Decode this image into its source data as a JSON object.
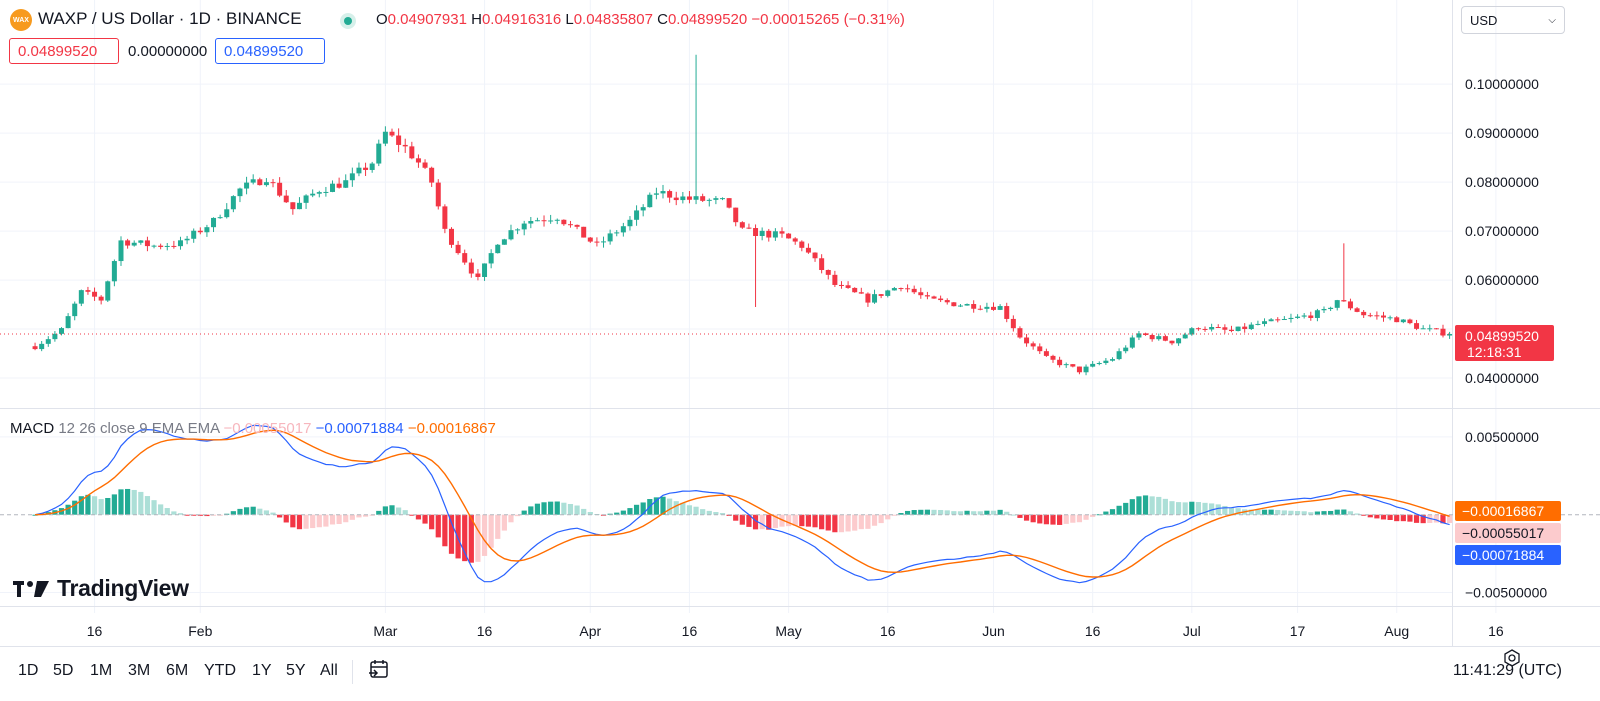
{
  "header": {
    "logo_text": "WAX",
    "symbol": "WAXP / US Dollar · 1D · BINANCE",
    "o_label": "O",
    "o_value": "0.04907931",
    "h_label": "H",
    "h_value": "0.04916316",
    "l_label": "L",
    "l_value": "0.04835807",
    "c_label": "C",
    "c_value": "0.04899520",
    "change": "−0.00015265 (−0.31%)",
    "bid": "0.04899520",
    "spread": "0.00000000",
    "ask": "0.04899520",
    "currency": "USD"
  },
  "price_axis": {
    "ticks": [
      "0.10000000",
      "0.09000000",
      "0.08000000",
      "0.07000000",
      "0.06000000",
      "0.04000000"
    ],
    "last_price_label": "0.04899520",
    "countdown": "12:18:31"
  },
  "macd": {
    "title": "MACD",
    "params": "12 26 close 9 EMA EMA",
    "hist_value": "−0.00055017",
    "macd_value": "−0.00071884",
    "signal_value": "−0.00016867",
    "axis_ticks": [
      "0.00500000",
      "−0.00500000"
    ]
  },
  "time_axis": [
    "16",
    "Feb",
    "Mar",
    "16",
    "Apr",
    "16",
    "May",
    "16",
    "Jun",
    "16",
    "Jul",
    "17",
    "Aug",
    "16"
  ],
  "branding": "TradingView",
  "ranges": [
    "1D",
    "5D",
    "1M",
    "3M",
    "6M",
    "YTD",
    "1Y",
    "5Y",
    "All"
  ],
  "clock": "11:41:29 (UTC)",
  "colors": {
    "up": "#22ab94",
    "down": "#f23645",
    "macd": "#2962ff",
    "signal": "#ff6d00",
    "hist_up": "#22ab94",
    "hist_up_light": "#acdfd7",
    "hist_down": "#f23645",
    "hist_down_light": "#fccbcd"
  },
  "chart_data": [
    {
      "type": "candlestick",
      "title": "WAXP / US Dollar · 1D · BINANCE",
      "ylim": [
        0.0345,
        0.109
      ],
      "waypoints": [
        [
          "2023-01-07",
          0.0465
        ],
        [
          "2023-01-11",
          0.0498
        ],
        [
          "2023-01-14",
          0.0575
        ],
        [
          "2023-01-17",
          0.056
        ],
        [
          "2023-01-20",
          0.068
        ],
        [
          "2023-01-25",
          0.067
        ],
        [
          "2023-01-29",
          0.0675
        ],
        [
          "2023-02-03",
          0.072
        ],
        [
          "2023-02-07",
          0.0785
        ],
        [
          "2023-02-11",
          0.081
        ],
        [
          "2023-02-15",
          0.0745
        ],
        [
          "2023-02-19",
          0.0785
        ],
        [
          "2023-02-23",
          0.08
        ],
        [
          "2023-02-27",
          0.084
        ],
        [
          "2023-03-01",
          0.09
        ],
        [
          "2023-03-04",
          0.087
        ],
        [
          "2023-03-06",
          0.084
        ],
        [
          "2023-03-08",
          0.08
        ],
        [
          "2023-03-10",
          0.07
        ],
        [
          "2023-03-13",
          0.064
        ],
        [
          "2023-03-15",
          0.06
        ],
        [
          "2023-03-18",
          0.068
        ],
        [
          "2023-03-22",
          0.072
        ],
        [
          "2023-03-27",
          0.073
        ],
        [
          "2023-04-02",
          0.067
        ],
        [
          "2023-04-07",
          0.072
        ],
        [
          "2023-04-11",
          0.078
        ],
        [
          "2023-04-16",
          0.0765
        ],
        [
          "2023-04-21",
          0.076
        ],
        [
          "2023-04-24",
          0.07
        ],
        [
          "2023-04-30",
          0.069
        ],
        [
          "2023-05-03",
          0.067
        ],
        [
          "2023-05-08",
          0.059
        ],
        [
          "2023-05-13",
          0.056
        ],
        [
          "2023-05-18",
          0.059
        ],
        [
          "2023-05-22",
          0.056
        ],
        [
          "2023-05-27",
          0.055
        ],
        [
          "2023-06-02",
          0.0545
        ],
        [
          "2023-06-05",
          0.0485
        ],
        [
          "2023-06-09",
          0.044
        ],
        [
          "2023-06-14",
          0.0415
        ],
        [
          "2023-06-19",
          0.044
        ],
        [
          "2023-06-23",
          0.049
        ],
        [
          "2023-06-28",
          0.0475
        ],
        [
          "2023-07-02",
          0.0505
        ],
        [
          "2023-07-07",
          0.0495
        ],
        [
          "2023-07-11",
          0.051
        ],
        [
          "2023-07-16",
          0.052
        ],
        [
          "2023-07-21",
          0.0535
        ],
        [
          "2023-07-23",
          0.056
        ],
        [
          "2023-07-27",
          0.053
        ],
        [
          "2023-08-01",
          0.052
        ],
        [
          "2023-08-05",
          0.05
        ],
        [
          "2023-08-09",
          0.049
        ]
      ],
      "spikes": [
        {
          "date": "2023-04-17",
          "high": 0.106
        },
        {
          "date": "2023-04-26",
          "low": 0.0545
        },
        {
          "date": "2023-07-24",
          "high": 0.0675
        }
      ],
      "last_price": 0.0489952
    },
    {
      "type": "line",
      "title": "MACD 12 26 close 9 EMA EMA",
      "ylim": [
        -0.0058,
        0.0066
      ],
      "series": [
        {
          "name": "MACD",
          "derived_from": "close EMA12-EMA26"
        },
        {
          "name": "Signal",
          "derived_from": "EMA9 of MACD"
        },
        {
          "name": "Histogram",
          "derived_from": "MACD-Signal"
        }
      ],
      "last": {
        "histogram": -0.00055017,
        "macd": -0.00071884,
        "signal": -0.00016867
      }
    }
  ]
}
